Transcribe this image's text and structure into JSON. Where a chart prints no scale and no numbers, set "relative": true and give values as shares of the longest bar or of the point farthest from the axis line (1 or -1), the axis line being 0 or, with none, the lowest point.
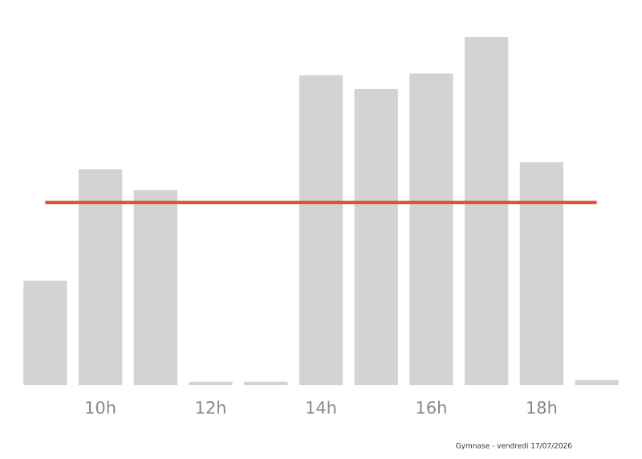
{
  "chart_data": {
    "type": "bar",
    "relative": true,
    "categories": [
      null,
      "10h",
      null,
      "12h",
      null,
      "14h",
      null,
      "16h",
      null,
      "18h",
      null
    ],
    "values": [
      0.3,
      0.62,
      0.56,
      0.01,
      0.01,
      0.89,
      0.85,
      0.895,
      1.0,
      0.64,
      0.015
    ],
    "color": "#d3d3d3",
    "ref_lines": [
      {
        "axis": "y",
        "value": 0.525,
        "color": "#d9531e"
      }
    ],
    "annotations": [
      "Gymnase - vendredi 17/07/2026"
    ]
  }
}
